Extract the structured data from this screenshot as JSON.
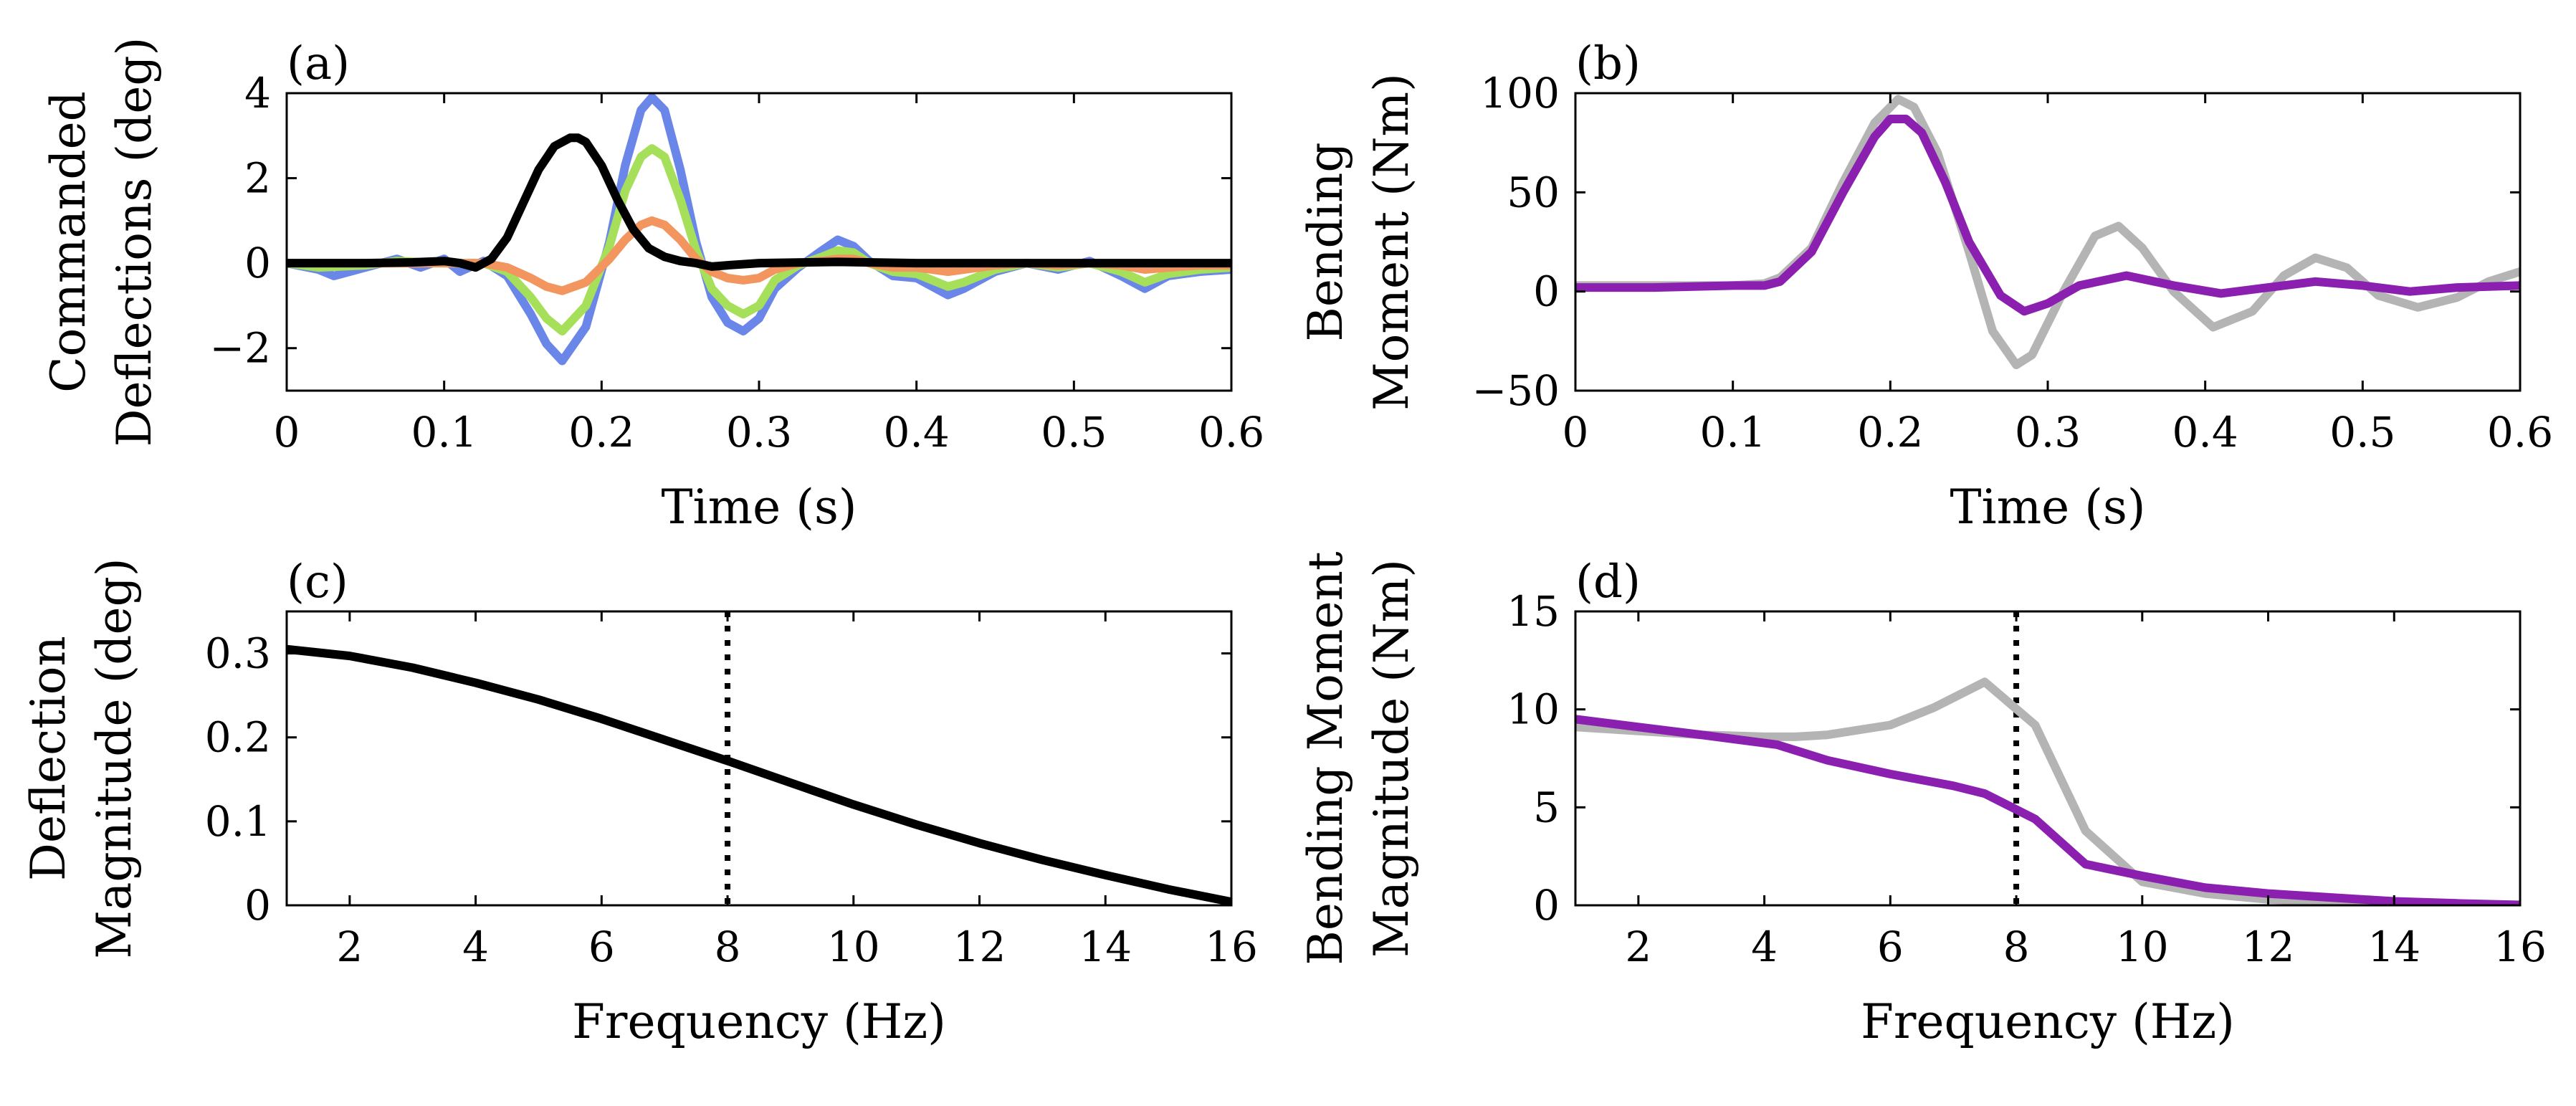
{
  "charts": [
    {
      "panel_label": "(a)",
      "type": "line",
      "xlabel": "Time (s)",
      "ylabel_lines": [
        "Commanded",
        "Deflections (deg)"
      ],
      "xlim": [
        0,
        0.6
      ],
      "ylim": [
        -3,
        4
      ],
      "xticks": [
        0,
        0.1,
        0.2,
        0.3,
        0.4,
        0.5,
        0.6
      ],
      "xtick_labels": [
        "0",
        "0.1",
        "0.2",
        "0.3",
        "0.4",
        "0.5",
        "0.6"
      ],
      "yticks": [
        -2,
        0,
        2,
        4
      ],
      "ytick_labels": [
        "−2",
        "0",
        "2",
        "4"
      ],
      "series": [
        {
          "color": "#6a86e8",
          "x": [
            0,
            0.02,
            0.03,
            0.05,
            0.07,
            0.085,
            0.1,
            0.11,
            0.125,
            0.14,
            0.155,
            0.165,
            0.175,
            0.19,
            0.205,
            0.215,
            0.225,
            0.232,
            0.24,
            0.25,
            0.26,
            0.27,
            0.28,
            0.29,
            0.3,
            0.31,
            0.325,
            0.34,
            0.35,
            0.36,
            0.37,
            0.385,
            0.4,
            0.42,
            0.43,
            0.45,
            0.47,
            0.49,
            0.51,
            0.53,
            0.545,
            0.56,
            0.58,
            0.6
          ],
          "y": [
            0,
            -0.15,
            -0.3,
            -0.1,
            0.1,
            -0.1,
            0.1,
            -0.2,
            0.05,
            -0.3,
            -1.2,
            -1.9,
            -2.3,
            -1.5,
            0.5,
            2.3,
            3.6,
            3.9,
            3.6,
            2.2,
            0.5,
            -0.8,
            -1.4,
            -1.6,
            -1.3,
            -0.6,
            -0.1,
            0.3,
            0.55,
            0.4,
            0.05,
            -0.3,
            -0.35,
            -0.75,
            -0.6,
            -0.2,
            0.0,
            -0.15,
            0.05,
            -0.3,
            -0.6,
            -0.3,
            -0.2,
            -0.15
          ]
        },
        {
          "color": "#a6e05a",
          "x": [
            0,
            0.02,
            0.05,
            0.07,
            0.1,
            0.125,
            0.14,
            0.155,
            0.165,
            0.175,
            0.19,
            0.205,
            0.215,
            0.225,
            0.232,
            0.24,
            0.25,
            0.26,
            0.27,
            0.28,
            0.29,
            0.3,
            0.31,
            0.325,
            0.34,
            0.35,
            0.36,
            0.37,
            0.385,
            0.4,
            0.42,
            0.43,
            0.45,
            0.47,
            0.49,
            0.51,
            0.53,
            0.545,
            0.56,
            0.58,
            0.6
          ],
          "y": [
            0,
            -0.1,
            -0.05,
            0.05,
            0,
            0,
            -0.2,
            -0.8,
            -1.3,
            -1.6,
            -1.0,
            0.4,
            1.7,
            2.5,
            2.7,
            2.5,
            1.5,
            0.3,
            -0.6,
            -1.0,
            -1.2,
            -1.0,
            -0.4,
            -0.05,
            0.15,
            0.3,
            0.25,
            0.0,
            -0.2,
            -0.25,
            -0.55,
            -0.45,
            -0.15,
            0,
            -0.1,
            0,
            -0.2,
            -0.45,
            -0.25,
            -0.15,
            -0.1
          ]
        },
        {
          "color": "#f2955e",
          "x": [
            0,
            0.05,
            0.1,
            0.125,
            0.14,
            0.155,
            0.165,
            0.175,
            0.19,
            0.205,
            0.215,
            0.225,
            0.232,
            0.24,
            0.25,
            0.26,
            0.27,
            0.28,
            0.29,
            0.3,
            0.31,
            0.325,
            0.34,
            0.35,
            0.36,
            0.37,
            0.385,
            0.4,
            0.42,
            0.43,
            0.45,
            0.47,
            0.49,
            0.51,
            0.53,
            0.545,
            0.56,
            0.58,
            0.6
          ],
          "y": [
            0,
            0,
            0,
            0,
            -0.1,
            -0.35,
            -0.55,
            -0.65,
            -0.45,
            0.1,
            0.55,
            0.9,
            1.0,
            0.9,
            0.55,
            0.1,
            -0.2,
            -0.35,
            -0.4,
            -0.35,
            -0.15,
            0,
            0.05,
            0.1,
            0.1,
            0,
            -0.1,
            -0.1,
            -0.2,
            -0.15,
            -0.05,
            0,
            -0.05,
            0,
            -0.05,
            -0.15,
            -0.1,
            -0.05,
            -0.05
          ]
        },
        {
          "color": "#000000",
          "x": [
            0,
            0.05,
            0.08,
            0.1,
            0.11,
            0.12,
            0.13,
            0.14,
            0.15,
            0.16,
            0.17,
            0.18,
            0.185,
            0.19,
            0.2,
            0.21,
            0.22,
            0.23,
            0.24,
            0.25,
            0.26,
            0.27,
            0.28,
            0.3,
            0.35,
            0.4,
            0.5,
            0.6
          ],
          "y": [
            0,
            0,
            0.02,
            0.05,
            0,
            -0.1,
            0.1,
            0.6,
            1.4,
            2.2,
            2.75,
            2.95,
            2.95,
            2.85,
            2.3,
            1.5,
            0.8,
            0.35,
            0.15,
            0.05,
            0,
            -0.08,
            -0.05,
            0,
            0.03,
            0,
            0,
            0
          ]
        }
      ]
    },
    {
      "panel_label": "(b)",
      "type": "line",
      "xlabel": "Time (s)",
      "ylabel_lines": [
        "Bending",
        "Moment (Nm)"
      ],
      "xlim": [
        0,
        0.6
      ],
      "ylim": [
        -50,
        100
      ],
      "xticks": [
        0,
        0.1,
        0.2,
        0.3,
        0.4,
        0.5,
        0.6
      ],
      "xtick_labels": [
        "0",
        "0.1",
        "0.2",
        "0.3",
        "0.4",
        "0.5",
        "0.6"
      ],
      "yticks": [
        -50,
        0,
        50,
        100
      ],
      "ytick_labels": [
        "−50",
        "0",
        "50",
        "100"
      ],
      "series": [
        {
          "color": "#b4b4b4",
          "x": [
            0,
            0.05,
            0.1,
            0.12,
            0.13,
            0.15,
            0.17,
            0.19,
            0.205,
            0.215,
            0.23,
            0.25,
            0.265,
            0.28,
            0.29,
            0.31,
            0.33,
            0.345,
            0.36,
            0.38,
            0.405,
            0.43,
            0.45,
            0.47,
            0.49,
            0.51,
            0.535,
            0.56,
            0.58,
            0.6
          ],
          "y": [
            3,
            3,
            3,
            4,
            7,
            22,
            55,
            85,
            97,
            93,
            70,
            20,
            -20,
            -37,
            -32,
            0,
            28,
            33,
            22,
            0,
            -18,
            -10,
            8,
            17,
            12,
            -2,
            -8,
            -3,
            5,
            10
          ]
        },
        {
          "color": "#8a1fb0",
          "x": [
            0,
            0.05,
            0.1,
            0.12,
            0.13,
            0.15,
            0.17,
            0.19,
            0.2,
            0.21,
            0.22,
            0.235,
            0.25,
            0.27,
            0.285,
            0.3,
            0.32,
            0.35,
            0.38,
            0.41,
            0.44,
            0.47,
            0.5,
            0.53,
            0.56,
            0.6
          ],
          "y": [
            2,
            2,
            3,
            3,
            5,
            20,
            50,
            78,
            87,
            87,
            80,
            55,
            25,
            -2,
            -10,
            -6,
            3,
            8,
            3,
            -1,
            2,
            5,
            3,
            0,
            2,
            3
          ]
        }
      ]
    },
    {
      "panel_label": "(c)",
      "type": "line",
      "xlabel": "Frequency (Hz)",
      "ylabel_lines": [
        "Deflection",
        "Magnitude (deg)"
      ],
      "xlim": [
        1,
        16
      ],
      "ylim": [
        0,
        0.35
      ],
      "xticks": [
        2,
        4,
        6,
        8,
        10,
        12,
        14,
        16
      ],
      "xtick_labels": [
        "2",
        "4",
        "6",
        "8",
        "10",
        "12",
        "14",
        "16"
      ],
      "yticks": [
        0,
        0.1,
        0.2,
        0.3
      ],
      "ytick_labels": [
        "0",
        "0.1",
        "0.2",
        "0.3"
      ],
      "vline": 8,
      "series": [
        {
          "color": "#000000",
          "x": [
            1,
            2,
            3,
            4,
            5,
            6,
            7,
            8,
            9,
            10,
            11,
            12,
            13,
            14,
            15,
            16
          ],
          "y": [
            0.305,
            0.297,
            0.283,
            0.265,
            0.245,
            0.222,
            0.197,
            0.172,
            0.146,
            0.12,
            0.096,
            0.074,
            0.054,
            0.036,
            0.019,
            0.004
          ]
        }
      ]
    },
    {
      "panel_label": "(d)",
      "type": "line",
      "xlabel": "Frequency (Hz)",
      "ylabel_lines": [
        "Bending Moment",
        "Magnitude (Nm)"
      ],
      "xlim": [
        1,
        16
      ],
      "ylim": [
        0,
        15
      ],
      "xticks": [
        2,
        4,
        6,
        8,
        10,
        12,
        14,
        16
      ],
      "xtick_labels": [
        "2",
        "4",
        "6",
        "8",
        "10",
        "12",
        "14",
        "16"
      ],
      "yticks": [
        0,
        5,
        10,
        15
      ],
      "ytick_labels": [
        "0",
        "5",
        "10",
        "15"
      ],
      "vline": 8,
      "series": [
        {
          "color": "#b4b4b4",
          "x": [
            1,
            2,
            3,
            4,
            4.5,
            5,
            6,
            6.7,
            7.5,
            8.3,
            9.1,
            10,
            11,
            12,
            13,
            14,
            15,
            16
          ],
          "y": [
            9.1,
            8.9,
            8.7,
            8.6,
            8.6,
            8.7,
            9.2,
            10.1,
            11.4,
            9.2,
            3.8,
            1.2,
            0.6,
            0.3,
            0.2,
            0.1,
            0.05,
            0.02
          ]
        },
        {
          "color": "#8a1fb0",
          "x": [
            1,
            2,
            3,
            4.2,
            5,
            6,
            7,
            7.5,
            8.3,
            9.1,
            10,
            11,
            12,
            13,
            14,
            15,
            16
          ],
          "y": [
            9.5,
            9.1,
            8.7,
            8.2,
            7.4,
            6.7,
            6.1,
            5.7,
            4.4,
            2.1,
            1.5,
            0.9,
            0.6,
            0.4,
            0.2,
            0.1,
            0.02
          ]
        }
      ]
    }
  ]
}
